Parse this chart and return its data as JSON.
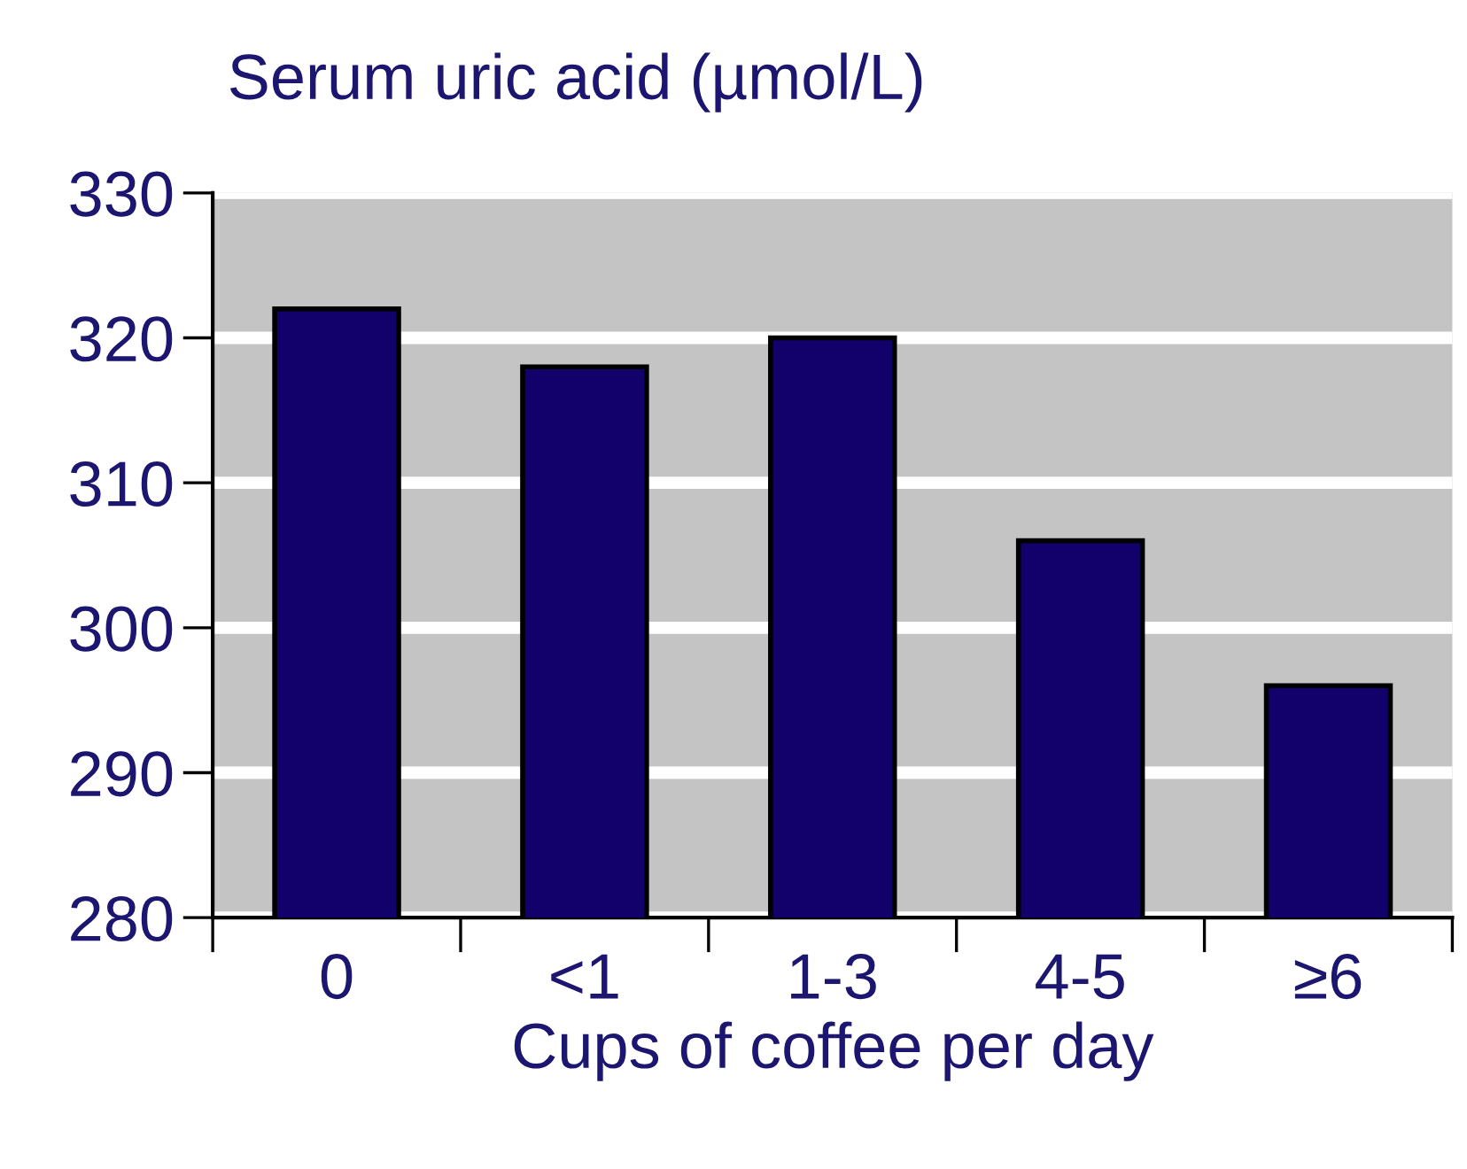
{
  "chart_data": {
    "type": "bar",
    "title": "Serum uric acid (µmol/L)",
    "xlabel": "Cups of coffee per day",
    "categories": [
      "0",
      "<1",
      "1-3",
      "4-5",
      "≥6"
    ],
    "values": [
      322,
      318,
      320,
      306,
      296
    ],
    "color": "#12006b",
    "ylim": [
      280,
      330
    ],
    "yticks": [
      280,
      290,
      300,
      310,
      320,
      330
    ],
    "grid": "y"
  }
}
